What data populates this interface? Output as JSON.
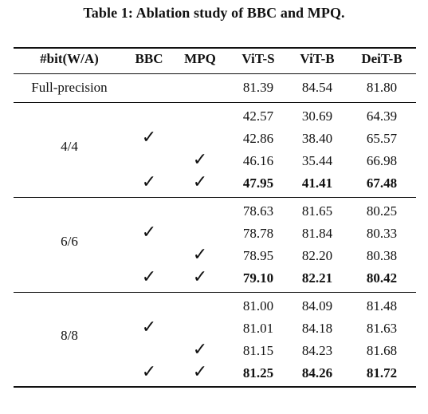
{
  "caption": "Table 1: Ablation study of BBC and MPQ.",
  "headers": {
    "bit": "#bit(W/A)",
    "bbc": "BBC",
    "mpq": "MPQ",
    "vits": "ViT-S",
    "vitb": "ViT-B",
    "deitb": "DeiT-B"
  },
  "check_mark": "✓",
  "full_precision": {
    "label": "Full-precision",
    "vits": "81.39",
    "vitb": "84.54",
    "deitb": "81.80"
  },
  "groups": [
    {
      "label": "4/4",
      "rows": [
        {
          "bbc": false,
          "mpq": false,
          "vits": "42.57",
          "vitb": "30.69",
          "deitb": "64.39",
          "bold": false
        },
        {
          "bbc": true,
          "mpq": false,
          "vits": "42.86",
          "vitb": "38.40",
          "deitb": "65.57",
          "bold": false
        },
        {
          "bbc": false,
          "mpq": true,
          "vits": "46.16",
          "vitb": "35.44",
          "deitb": "66.98",
          "bold": false
        },
        {
          "bbc": true,
          "mpq": true,
          "vits": "47.95",
          "vitb": "41.41",
          "deitb": "67.48",
          "bold": true
        }
      ]
    },
    {
      "label": "6/6",
      "rows": [
        {
          "bbc": false,
          "mpq": false,
          "vits": "78.63",
          "vitb": "81.65",
          "deitb": "80.25",
          "bold": false
        },
        {
          "bbc": true,
          "mpq": false,
          "vits": "78.78",
          "vitb": "81.84",
          "deitb": "80.33",
          "bold": false
        },
        {
          "bbc": false,
          "mpq": true,
          "vits": "78.95",
          "vitb": "82.20",
          "deitb": "80.38",
          "bold": false
        },
        {
          "bbc": true,
          "mpq": true,
          "vits": "79.10",
          "vitb": "82.21",
          "deitb": "80.42",
          "bold": true
        }
      ]
    },
    {
      "label": "8/8",
      "rows": [
        {
          "bbc": false,
          "mpq": false,
          "vits": "81.00",
          "vitb": "84.09",
          "deitb": "81.48",
          "bold": false
        },
        {
          "bbc": true,
          "mpq": false,
          "vits": "81.01",
          "vitb": "84.18",
          "deitb": "81.63",
          "bold": false
        },
        {
          "bbc": false,
          "mpq": true,
          "vits": "81.15",
          "vitb": "84.23",
          "deitb": "81.68",
          "bold": false
        },
        {
          "bbc": true,
          "mpq": true,
          "vits": "81.25",
          "vitb": "84.26",
          "deitb": "81.72",
          "bold": true
        }
      ]
    }
  ]
}
